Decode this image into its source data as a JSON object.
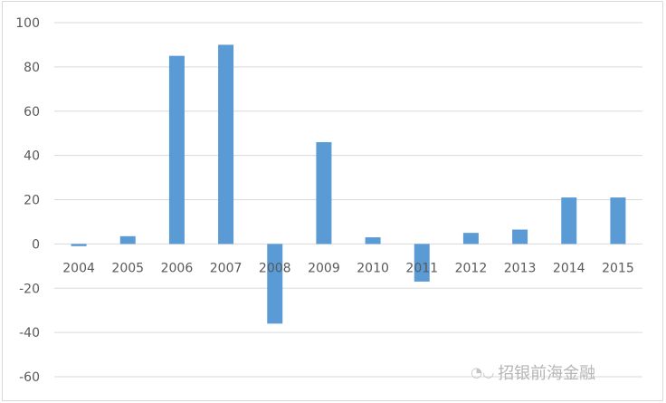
{
  "chart_data": {
    "type": "bar",
    "categories": [
      "2004",
      "2005",
      "2006",
      "2007",
      "2008",
      "2009",
      "2010",
      "2011",
      "2012",
      "2013",
      "2014",
      "2015"
    ],
    "values": [
      -1,
      3.5,
      85,
      90,
      -36,
      46,
      3,
      -17,
      5,
      6.5,
      21,
      21
    ],
    "yticks": [
      100,
      80,
      60,
      40,
      20,
      0,
      -20,
      -40,
      -60
    ],
    "ylim": [
      -60,
      100
    ],
    "grid": true,
    "bar_color": "#5b9bd5",
    "grid_color": "#d9d9d9",
    "tick_color": "#595959"
  },
  "watermark": {
    "text": "招银前海金融",
    "icon": "wechat-icon"
  }
}
